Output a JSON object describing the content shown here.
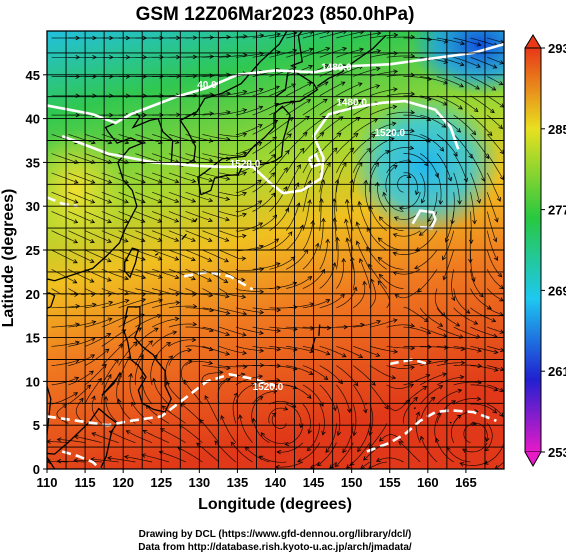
{
  "title": "GSM 12Z06Mar2023 (850.0hPa)",
  "xlabel": "Longitude (degrees)",
  "ylabel": "Latitude  (degrees)",
  "credits": [
    "Drawing by DCL (https://www.gfd-dennou.org/library/dcl/)",
    "Data from http://database.rish.kyoto-u.ac.jp/arch/jmadata/"
  ],
  "chart_data": {
    "type": "heatmap",
    "variable": "850 hPa temperature (K) with streamlines and geopotential height contours",
    "xlim": [
      110,
      170
    ],
    "ylim": [
      0,
      50
    ],
    "x_ticks": [
      110,
      115,
      120,
      125,
      130,
      135,
      140,
      145,
      150,
      155,
      160,
      165
    ],
    "y_ticks": [
      0,
      5,
      10,
      15,
      20,
      25,
      30,
      35,
      40,
      45
    ],
    "grid": true,
    "colorbar": {
      "min": 253,
      "max": 293,
      "ticks": [
        253,
        261,
        269,
        277,
        285,
        293
      ],
      "colors": [
        "#e81ac8",
        "#2020d0",
        "#1ec8f0",
        "#28c840",
        "#e8e020",
        "#e83818"
      ]
    },
    "contour_labels": [
      {
        "text": "1480.0",
        "lon": 148,
        "lat": 45.5
      },
      {
        "text": "1480.0",
        "lon": 150,
        "lat": 41.5
      },
      {
        "text": "1520.0",
        "lon": 136,
        "lat": 34.5
      },
      {
        "text": "1520.0",
        "lon": 155,
        "lat": 38
      },
      {
        "text": "1520.0",
        "lon": 139,
        "lat": 9
      },
      {
        "text": "40.0",
        "lon": 131,
        "lat": 43.5
      }
    ]
  }
}
